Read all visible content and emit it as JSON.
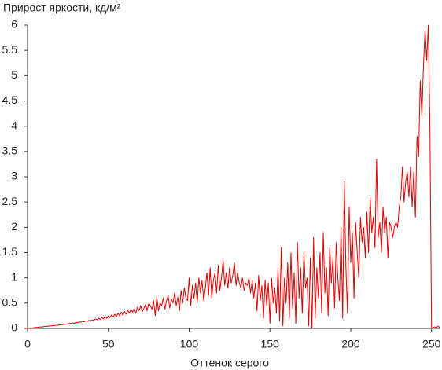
{
  "chart_data": {
    "type": "line",
    "title": "Прирост яркости, кд/м²",
    "x_label": "Оттенок серого",
    "xlim": [
      0,
      255
    ],
    "xticks": [
      0,
      50,
      100,
      150,
      200,
      250
    ],
    "ylim": [
      0,
      6
    ],
    "yticks": [
      0,
      0.5,
      1,
      1.5,
      2,
      2.5,
      3,
      3.5,
      4,
      4.5,
      5,
      5.5,
      6
    ],
    "grid": false,
    "x": [
      0,
      1,
      2,
      3,
      4,
      5,
      6,
      7,
      8,
      9,
      10,
      11,
      12,
      13,
      14,
      15,
      16,
      17,
      18,
      19,
      20,
      21,
      22,
      23,
      24,
      25,
      26,
      27,
      28,
      29,
      30,
      31,
      32,
      33,
      34,
      35,
      36,
      37,
      38,
      39,
      40,
      41,
      42,
      43,
      44,
      45,
      46,
      47,
      48,
      49,
      50,
      51,
      52,
      53,
      54,
      55,
      56,
      57,
      58,
      59,
      60,
      61,
      62,
      63,
      64,
      65,
      66,
      67,
      68,
      69,
      70,
      71,
      72,
      73,
      74,
      75,
      76,
      77,
      78,
      79,
      80,
      81,
      82,
      83,
      84,
      85,
      86,
      87,
      88,
      89,
      90,
      91,
      92,
      93,
      94,
      95,
      96,
      97,
      98,
      99,
      100,
      101,
      102,
      103,
      104,
      105,
      106,
      107,
      108,
      109,
      110,
      111,
      112,
      113,
      114,
      115,
      116,
      117,
      118,
      119,
      120,
      121,
      122,
      123,
      124,
      125,
      126,
      127,
      128,
      129,
      130,
      131,
      132,
      133,
      134,
      135,
      136,
      137,
      138,
      139,
      140,
      141,
      142,
      143,
      144,
      145,
      146,
      147,
      148,
      149,
      150,
      151,
      152,
      153,
      154,
      155,
      156,
      157,
      158,
      159,
      160,
      161,
      162,
      163,
      164,
      165,
      166,
      167,
      168,
      169,
      170,
      171,
      172,
      173,
      174,
      175,
      176,
      177,
      178,
      179,
      180,
      181,
      182,
      183,
      184,
      185,
      186,
      187,
      188,
      189,
      190,
      191,
      192,
      193,
      194,
      195,
      196,
      197,
      198,
      199,
      200,
      201,
      202,
      203,
      204,
      205,
      206,
      207,
      208,
      209,
      210,
      211,
      212,
      213,
      214,
      215,
      216,
      217,
      218,
      219,
      220,
      221,
      222,
      223,
      224,
      225,
      226,
      227,
      228,
      229,
      230,
      231,
      232,
      233,
      234,
      235,
      236,
      237,
      238,
      239,
      240,
      241,
      242,
      243,
      244,
      245,
      246,
      247,
      248,
      249,
      250,
      251,
      252,
      253,
      254,
      255
    ],
    "series": [
      {
        "color": "#e00000",
        "values": [
          0,
          0.005,
          0.01,
          0.01,
          0.015,
          0.02,
          0.02,
          0.025,
          0.03,
          0.03,
          0.035,
          0.04,
          0.04,
          0.045,
          0.05,
          0.05,
          0.055,
          0.06,
          0.06,
          0.065,
          0.07,
          0.07,
          0.08,
          0.08,
          0.09,
          0.09,
          0.1,
          0.1,
          0.11,
          0.1,
          0.12,
          0.11,
          0.13,
          0.12,
          0.14,
          0.13,
          0.15,
          0.14,
          0.16,
          0.15,
          0.17,
          0.16,
          0.19,
          0.17,
          0.2,
          0.18,
          0.22,
          0.19,
          0.24,
          0.2,
          0.25,
          0.21,
          0.27,
          0.22,
          0.28,
          0.23,
          0.3,
          0.25,
          0.32,
          0.26,
          0.33,
          0.28,
          0.36,
          0.3,
          0.38,
          0.32,
          0.4,
          0.3,
          0.42,
          0.35,
          0.45,
          0.33,
          0.4,
          0.48,
          0.35,
          0.5,
          0.45,
          0.38,
          0.55,
          0.25,
          0.62,
          0.35,
          0.5,
          0.45,
          0.6,
          0.38,
          0.55,
          0.65,
          0.4,
          0.58,
          0.5,
          0.7,
          0.45,
          0.62,
          0.35,
          0.75,
          0.5,
          0.8,
          0.6,
          0.55,
          1.0,
          0.45,
          0.85,
          0.6,
          0.9,
          0.5,
          1.0,
          0.7,
          0.95,
          0.55,
          0.8,
          1.1,
          0.65,
          1.2,
          0.6,
          0.95,
          1.1,
          0.7,
          1.25,
          0.75,
          1.0,
          1.35,
          0.85,
          1.1,
          0.8,
          1.2,
          0.9,
          1.05,
          1.3,
          0.85,
          1.1,
          0.9,
          0.8,
          1.0,
          0.75,
          0.9,
          0.85,
          1.0,
          0.7,
          0.95,
          0.6,
          0.9,
          0.35,
          1.05,
          0.55,
          0.85,
          0.2,
          0.95,
          0.45,
          0.9,
          0.1,
          1.0,
          0.5,
          0.8,
          0.3,
          1.2,
          0.15,
          1.6,
          0.05,
          1.0,
          0.5,
          1.3,
          0.2,
          1.5,
          0.4,
          1.1,
          0.1,
          1.7,
          0.6,
          1.2,
          0.3,
          1.5,
          0.8,
          1.0,
          0.05,
          1.4,
          0.0,
          1.8,
          0.2,
          1.2,
          0.6,
          1.5,
          0.3,
          1.9,
          0.7,
          1.2,
          0.25,
          1.6,
          0.9,
          1.4,
          0.4,
          1.7,
          1.0,
          0.55,
          2.0,
          0.2,
          2.9,
          1.2,
          0.3,
          2.4,
          1.3,
          1.9,
          0.6,
          2.1,
          1.5,
          1.0,
          2.2,
          1.7,
          2.0,
          1.4,
          2.3,
          1.5,
          2.6,
          1.9,
          2.2,
          1.6,
          3.35,
          1.8,
          2.1,
          1.5,
          2.4,
          1.9,
          2.2,
          1.4,
          2.1,
          2.0,
          1.8,
          2.0,
          2.1,
          2.0,
          2.4,
          2.6,
          3.2,
          2.5,
          2.9,
          3.1,
          2.6,
          3.2,
          2.4,
          3.1,
          2.2,
          3.8,
          3.4,
          4.9,
          4.2,
          5.2,
          5.9,
          5.3,
          6.0,
          4.0,
          0.0,
          0.02,
          0.03,
          0.02,
          0.04,
          0.02
        ]
      }
    ]
  }
}
